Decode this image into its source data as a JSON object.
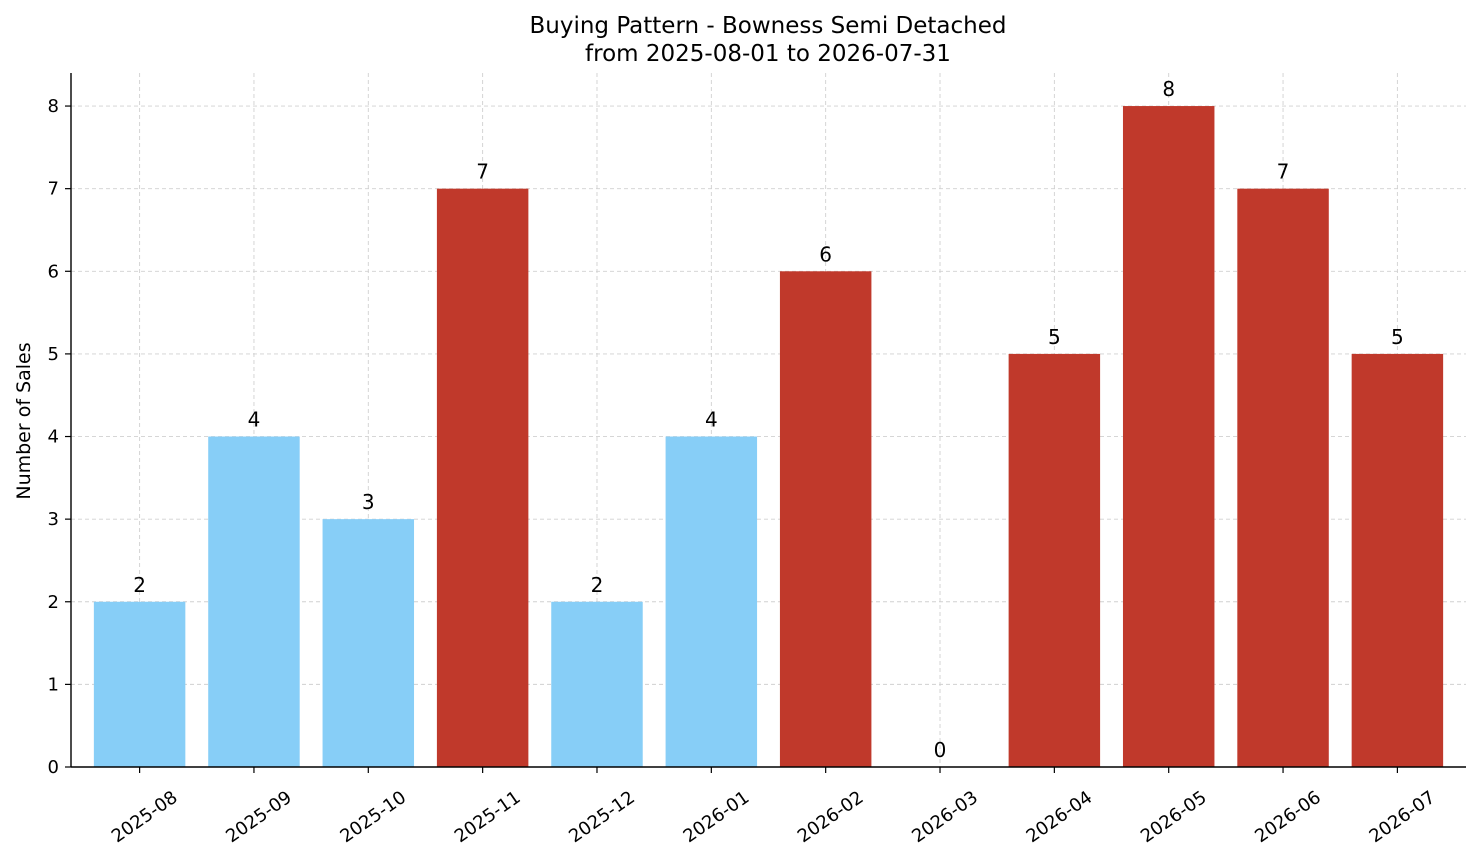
{
  "chart_data": {
    "type": "bar",
    "title": "Buying Pattern - Bowness Semi Detached",
    "subtitle": "from 2025-08-01 to 2026-07-31",
    "xlabel": "",
    "ylabel": "Number of Sales",
    "ylim": [
      0,
      8.4
    ],
    "yticks": [
      0,
      1,
      2,
      3,
      4,
      5,
      6,
      7,
      8
    ],
    "grid": true,
    "categories": [
      "2025-08",
      "2025-09",
      "2025-10",
      "2025-11",
      "2025-12",
      "2026-01",
      "2026-02",
      "2026-03",
      "2026-04",
      "2026-05",
      "2026-06",
      "2026-07"
    ],
    "values": [
      2,
      4,
      3,
      7,
      2,
      4,
      6,
      0,
      5,
      8,
      7,
      5
    ],
    "bar_colors": [
      "#87cef7",
      "#87cef7",
      "#87cef7",
      "#c0392b",
      "#87cef7",
      "#87cef7",
      "#c0392b",
      "#c0392b",
      "#c0392b",
      "#c0392b",
      "#c0392b",
      "#c0392b"
    ],
    "data_labels": true
  }
}
